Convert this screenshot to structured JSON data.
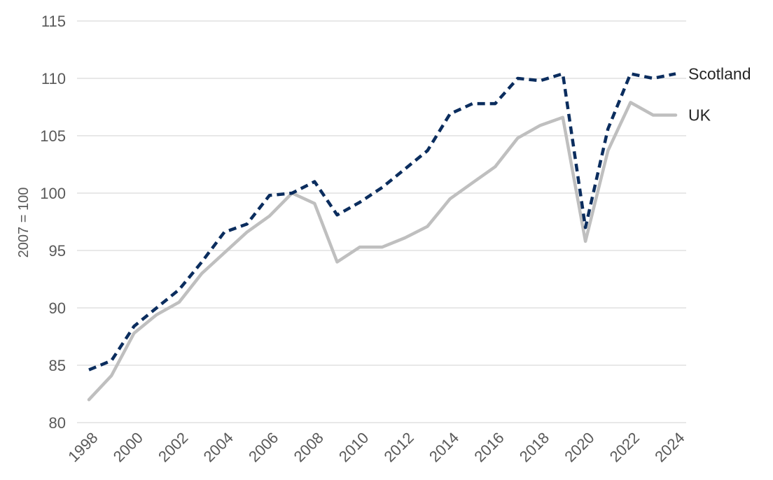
{
  "chart_data": {
    "type": "line",
    "title": "",
    "xlabel": "",
    "ylabel": "2007 = 100",
    "ylim": [
      80,
      115
    ],
    "yticks": [
      80,
      85,
      90,
      95,
      100,
      105,
      110,
      115
    ],
    "grid": true,
    "legend": "direct labels at line ends",
    "x": [
      1998,
      1999,
      2000,
      2001,
      2002,
      2003,
      2004,
      2005,
      2006,
      2007,
      2008,
      2009,
      2010,
      2011,
      2012,
      2013,
      2014,
      2015,
      2016,
      2017,
      2018,
      2019,
      2020,
      2021,
      2022,
      2023,
      2024
    ],
    "xtick_labels": [
      "1998",
      "2000",
      "2002",
      "2004",
      "2006",
      "2008",
      "2010",
      "2012",
      "2014",
      "2016",
      "2018",
      "2020",
      "2022",
      "2024"
    ],
    "series": [
      {
        "name": "Scotland",
        "color": "#0b2d5e",
        "style": "dashed",
        "values": [
          84.6,
          85.4,
          88.4,
          90.0,
          91.6,
          94.0,
          96.6,
          97.3,
          99.8,
          100.0,
          101.0,
          98.1,
          99.2,
          100.5,
          102.1,
          103.7,
          106.9,
          107.8,
          107.8,
          110.0,
          109.8,
          110.4,
          97.0,
          105.6,
          110.4,
          110.0,
          110.4
        ]
      },
      {
        "name": "UK",
        "color": "#bfbfbf",
        "style": "solid",
        "values": [
          82.0,
          84.1,
          87.8,
          89.4,
          90.5,
          93.0,
          94.8,
          96.6,
          98.0,
          100.0,
          99.1,
          94.0,
          95.3,
          95.3,
          96.1,
          97.1,
          99.5,
          100.9,
          102.3,
          104.8,
          105.9,
          106.6,
          95.8,
          103.7,
          107.9,
          106.8,
          106.8
        ]
      }
    ]
  }
}
